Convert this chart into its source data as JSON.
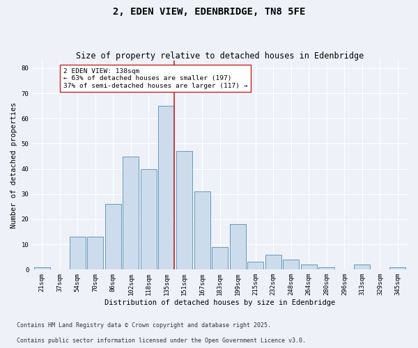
{
  "title": "2, EDEN VIEW, EDENBRIDGE, TN8 5FE",
  "subtitle": "Size of property relative to detached houses in Edenbridge",
  "xlabel": "Distribution of detached houses by size in Edenbridge",
  "ylabel": "Number of detached properties",
  "bar_color": "#ccdcec",
  "bar_edge_color": "#6699bb",
  "background_color": "#eef2f8",
  "annotation_box_color": "#ffffff",
  "annotation_border_color": "#cc2222",
  "vline_color": "#cc2222",
  "categories": [
    "21sqm",
    "37sqm",
    "54sqm",
    "70sqm",
    "86sqm",
    "102sqm",
    "118sqm",
    "135sqm",
    "151sqm",
    "167sqm",
    "183sqm",
    "199sqm",
    "215sqm",
    "232sqm",
    "248sqm",
    "264sqm",
    "280sqm",
    "296sqm",
    "313sqm",
    "329sqm",
    "345sqm"
  ],
  "values": [
    1,
    0,
    13,
    13,
    26,
    45,
    40,
    65,
    47,
    31,
    9,
    18,
    3,
    6,
    4,
    2,
    1,
    0,
    2,
    0,
    1
  ],
  "vline_index": 7,
  "annotation_text": "2 EDEN VIEW: 138sqm\n← 63% of detached houses are smaller (197)\n37% of semi-detached houses are larger (117) →",
  "ylim": [
    0,
    83
  ],
  "yticks": [
    0,
    10,
    20,
    30,
    40,
    50,
    60,
    70,
    80
  ],
  "footnote1": "Contains HM Land Registry data © Crown copyright and database right 2025.",
  "footnote2": "Contains public sector information licensed under the Open Government Licence v3.0.",
  "title_fontsize": 10,
  "subtitle_fontsize": 8.5,
  "label_fontsize": 7.5,
  "tick_fontsize": 6.5,
  "annotation_fontsize": 6.8,
  "footnote_fontsize": 6.0
}
